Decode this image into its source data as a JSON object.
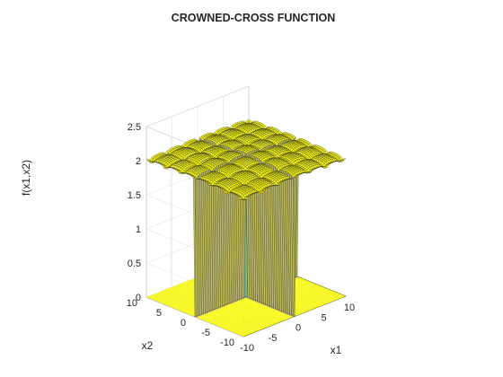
{
  "chart_data": {
    "type": "surface",
    "title": "CROWNED-CROSS FUNCTION",
    "xlabel": "x1",
    "ylabel": "x2",
    "zlabel": "f(x1,x2)",
    "xlim": [
      -10,
      10
    ],
    "ylim": [
      -10,
      10
    ],
    "zlim": [
      0,
      2.5
    ],
    "x_ticks": [
      "-10",
      "-5",
      "0",
      "5",
      "10"
    ],
    "y_ticks": [
      "-10",
      "-5",
      "0",
      "5",
      "10"
    ],
    "z_ticks": [
      "0",
      "0.5",
      "1",
      "1.5",
      "2",
      "2.5"
    ],
    "grid": true,
    "colormap": "parula",
    "surface_color_low": "#3eb2c0",
    "surface_color_high": "#f9e636",
    "contour_on_floor": true,
    "function": "f(x1,x2) = 0.0001 * (|sin(x1) sin(x2) exp(|100 - sqrt(x1^2+x2^2)/pi|)| + 1)^(-0.1), clipped where near the axes",
    "grid_resolution": 61,
    "surface_approx_max": 2.1
  }
}
